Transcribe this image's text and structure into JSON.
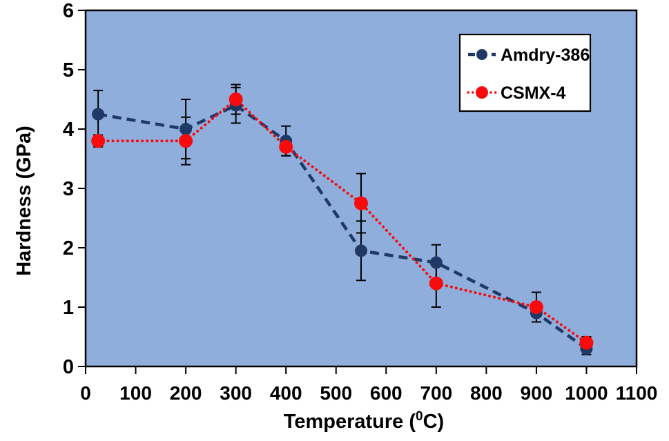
{
  "chart_data": {
    "type": "line",
    "title": "",
    "x": [
      25,
      200,
      300,
      400,
      550,
      700,
      900,
      1000
    ],
    "series": [
      {
        "name": "Amdry-386",
        "color": "#1F3864",
        "line_style": "dashed",
        "marker": "circle",
        "marker_size": 9,
        "values": [
          4.25,
          4.0,
          4.4,
          3.8,
          1.95,
          1.75,
          0.9,
          0.3
        ],
        "error_bars": [
          0.4,
          0.5,
          0.3,
          0.25,
          0.5,
          0.3,
          0.15,
          0.1
        ]
      },
      {
        "name": "CSMX-4",
        "color": "#F80B0D",
        "line_style": "dotted",
        "marker": "circle",
        "marker_size": 10,
        "values": [
          3.8,
          3.8,
          4.5,
          3.7,
          2.75,
          1.4,
          1.0,
          0.4
        ],
        "error_bars": [
          0.1,
          0.4,
          0.25,
          0.15,
          0.5,
          0.4,
          0.25,
          0.1
        ]
      }
    ],
    "xlabel": "Temperature (0C)",
    "xlabel_parts": {
      "prefix": "Temperature (",
      "superscript": "0",
      "suffix": "C)"
    },
    "ylabel": "Hardness (GPa)",
    "xlim": [
      0,
      1100
    ],
    "ylim": [
      0,
      6
    ],
    "x_ticks": [
      0,
      100,
      200,
      300,
      400,
      500,
      600,
      700,
      800,
      900,
      1000,
      1100
    ],
    "y_ticks": [
      0,
      1,
      2,
      3,
      4,
      5,
      6
    ],
    "grid": false,
    "legend_position": "top-right",
    "colors": {
      "plot_background": "#8FAEDC",
      "outer_background": "#FFFFFF",
      "axis": "#000000",
      "error_bar": "#000000",
      "legend_background": "#FFFFFF",
      "legend_border": "#000000"
    }
  }
}
